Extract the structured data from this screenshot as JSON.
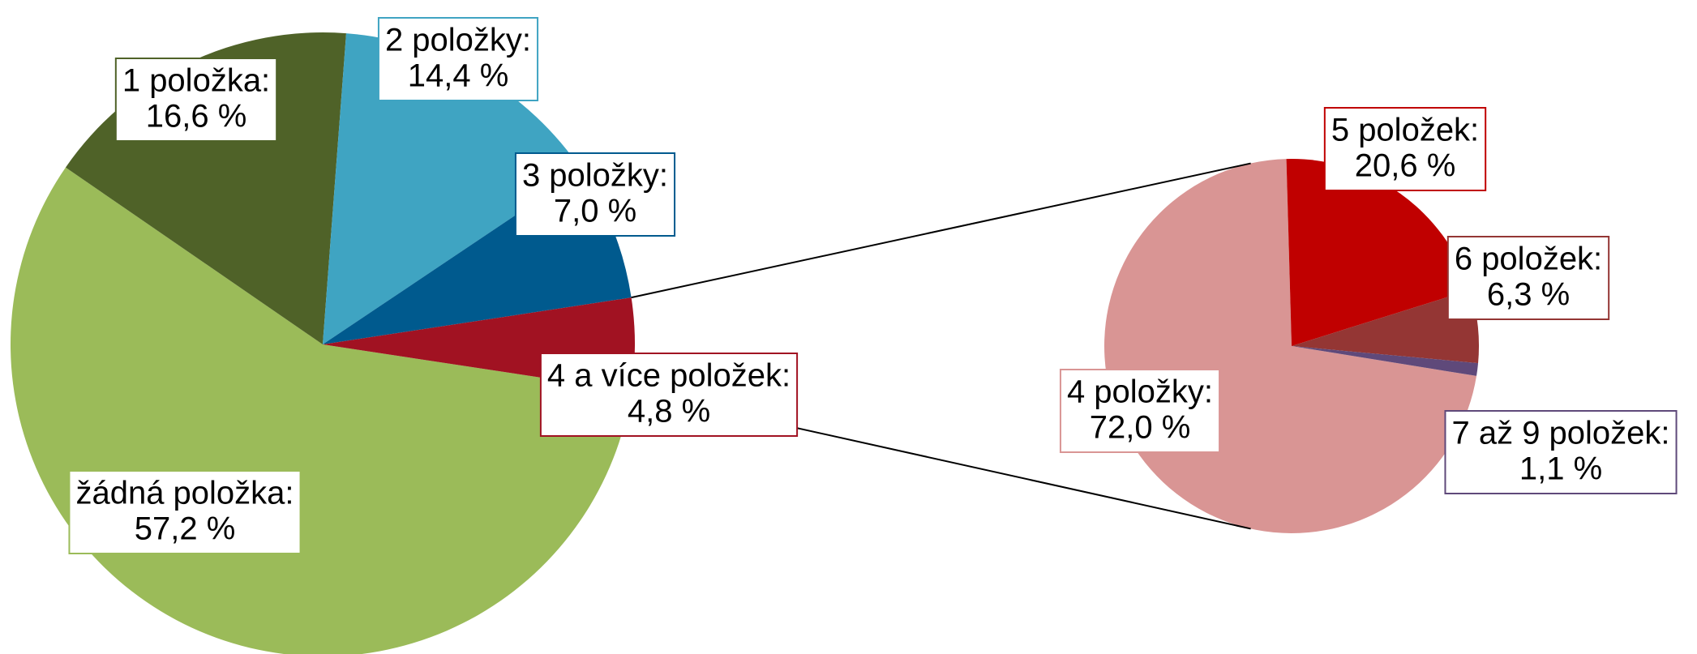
{
  "chart_data": [
    {
      "type": "pie",
      "categories": [
        "žádná položka:",
        "1 položka:",
        "2 položky:",
        "3 položky:",
        "4 a více položek:"
      ],
      "values": [
        57.2,
        16.6,
        14.4,
        7.0,
        4.8
      ],
      "value_labels": [
        "57,2 %",
        "16,6 %",
        "14,4 %",
        "7,0 %",
        "4,8 %"
      ],
      "colors": [
        "#9bbb59",
        "#4f6228",
        "#3fa4c2",
        "#005a8e",
        "#a11222"
      ]
    },
    {
      "type": "pie",
      "categories": [
        "4 položky:",
        "5 položek:",
        "6 položek:",
        "7 až 9 položek:"
      ],
      "values": [
        72.0,
        20.6,
        6.3,
        1.1
      ],
      "value_labels": [
        "72,0 %",
        "20,6 %",
        "6,3 %",
        "1,1 %"
      ],
      "colors": [
        "#d99594",
        "#c00000",
        "#943634",
        "#5f497a"
      ]
    }
  ]
}
